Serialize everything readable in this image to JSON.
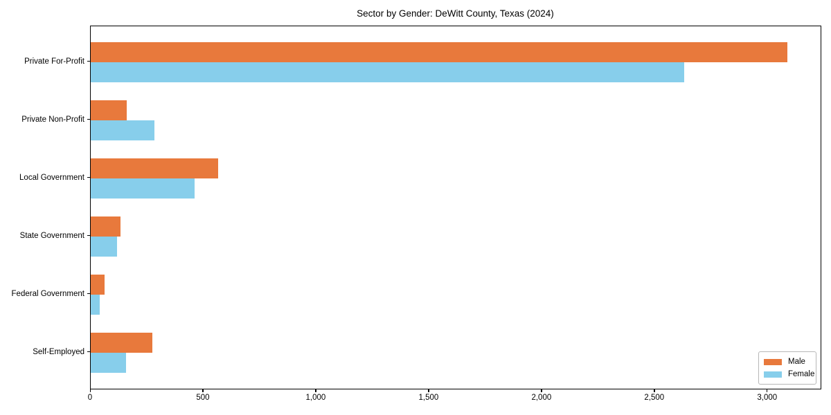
{
  "chart_data": {
    "type": "bar",
    "orientation": "horizontal",
    "title": "Sector by Gender: DeWitt County, Texas (2024)",
    "xlabel": "",
    "ylabel": "",
    "categories": [
      "Private For-Profit",
      "Private Non-Profit",
      "Local Government",
      "State Government",
      "Federal Government",
      "Self-Employed"
    ],
    "series": [
      {
        "name": "Male",
        "color": "#e8793c",
        "values": [
          3086,
          159,
          566,
          132,
          61,
          274
        ]
      },
      {
        "name": "Female",
        "color": "#87ceeb",
        "values": [
          2628,
          281,
          461,
          118,
          39,
          155
        ]
      }
    ],
    "xlim": [
      0,
      3240
    ],
    "x_ticks": {
      "values": [
        0,
        500,
        1000,
        1500,
        2000,
        2500,
        3000
      ],
      "labels": [
        "0",
        "500",
        "1,000",
        "1,500",
        "2,000",
        "2,500",
        "3,000"
      ]
    },
    "grid": false,
    "legend": {
      "position": "lower right",
      "entries": [
        "Male",
        "Female"
      ]
    },
    "colors": {
      "axis": "#000000",
      "text": "#000000",
      "background": "#ffffff",
      "legend_border": "#b7b7b7"
    }
  }
}
